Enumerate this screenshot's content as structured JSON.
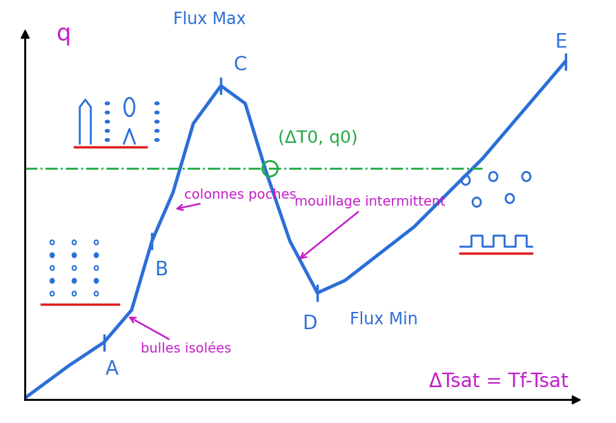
{
  "chart_data": {
    "type": "line",
    "y_label": "q",
    "x_label": "ΔTsat = Tf-Tsat",
    "x": [
      0,
      8.1,
      14.4,
      19.4,
      23.1,
      26.9,
      30.6,
      35.6,
      40,
      43.8,
      48.1,
      53.1,
      58.1,
      70.6,
      83.1,
      98.1
    ],
    "values": [
      0.4,
      9.4,
      15.7,
      24.5,
      43.4,
      56.6,
      75.5,
      85.8,
      81,
      62.3,
      43.4,
      29.2,
      32.6,
      47.2,
      66,
      92.5
    ],
    "color": "#2b6fd8",
    "xlim": [
      0,
      100
    ],
    "ylim": [
      0,
      100
    ],
    "xticks": [],
    "yticks": [],
    "tick_labels": false,
    "points": [
      {
        "label": "A",
        "x": 14.4,
        "y": 15.7
      },
      {
        "label": "B",
        "x": 23.1,
        "y": 43.4
      },
      {
        "label": "C",
        "x": 35.6,
        "y": 85.8
      },
      {
        "label": "D",
        "x": 53.1,
        "y": 29.2
      },
      {
        "label": "E",
        "x": 98.1,
        "y": 92.5
      }
    ],
    "reference": {
      "label": "(ΔT0, q0)",
      "x": 44.4,
      "y": 63.2,
      "color": "#22aa44"
    },
    "annotations": {
      "max": "Flux Max",
      "min": "Flux Min",
      "bulles": "bulles isolées",
      "colonnes": "colonnes poches",
      "mouillage": "mouillage intermittent"
    }
  }
}
